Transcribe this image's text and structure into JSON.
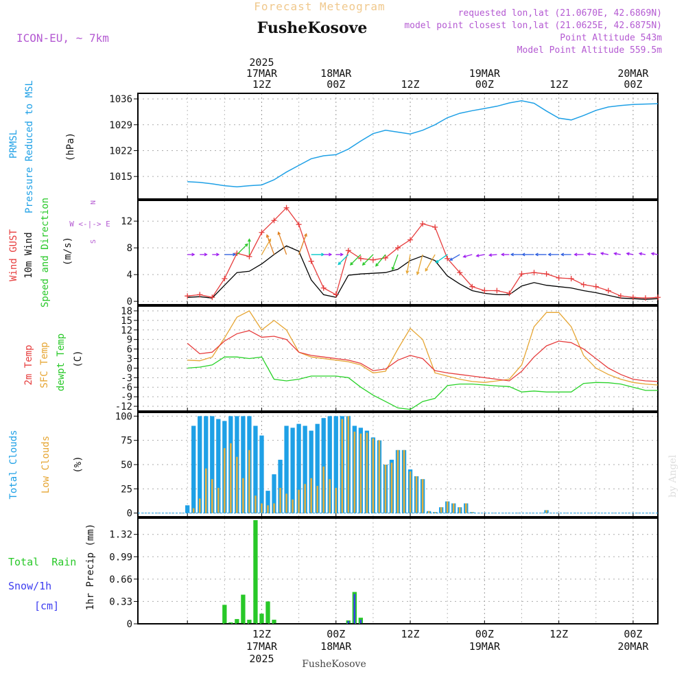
{
  "header": {
    "title": "Forecast Meteogram",
    "location": "FusheKosove",
    "model": "ICON-EU, ~ 7km",
    "requested": "requested lon,lat (21.0670E, 42.6869N)",
    "closest": "model point closest lon,lat (21.0625E, 42.6875N)",
    "point_altitude": "Point Altitude 543m",
    "model_altitude": "Model Point Altitude 559.5m",
    "credit": "by Angel",
    "footer_location": "FusheKosove"
  },
  "time_axis": {
    "top_labels": [
      {
        "hour": 12,
        "lines": [
          "2025",
          "17MAR",
          "12Z"
        ]
      },
      {
        "hour": 24,
        "lines": [
          "18MAR",
          "00Z"
        ]
      },
      {
        "hour": 36,
        "lines": [
          "12Z"
        ]
      },
      {
        "hour": 48,
        "lines": [
          "19MAR",
          "00Z"
        ]
      },
      {
        "hour": 60,
        "lines": [
          "12Z"
        ]
      },
      {
        "hour": 72,
        "lines": [
          "20MAR",
          "00Z"
        ]
      }
    ],
    "bottom_labels": [
      {
        "hour": 12,
        "lines": [
          "12Z",
          "17MAR",
          "2025"
        ]
      },
      {
        "hour": 24,
        "lines": [
          "00Z",
          "18MAR"
        ]
      },
      {
        "hour": 36,
        "lines": [
          "12Z"
        ]
      },
      {
        "hour": 48,
        "lines": [
          "00Z",
          "19MAR"
        ]
      },
      {
        "hour": 60,
        "lines": [
          "12Z"
        ]
      },
      {
        "hour": 72,
        "lines": [
          "00Z",
          "20MAR"
        ]
      }
    ]
  },
  "colors": {
    "pressure": "#1ea0e6",
    "gust": "#e63c3c",
    "wind": "#000000",
    "temp": "#e63c3c",
    "sfc": "#e6a532",
    "dew": "#28d228",
    "total_clouds": "#1ea0e6",
    "low_clouds": "#e6af3c",
    "rain": "#28c828",
    "snow": "#3c3cf0",
    "title": "#f0c88c",
    "meta": "#b45ad2"
  },
  "panel_labels": {
    "pressure": {
      "line1": "PRMSL",
      "line2": "Pressure Reduced to MSL",
      "unit": "(hPa)"
    },
    "wind": {
      "gust": "Wind GUST",
      "wind": "10m Wind",
      "dir": "Speed and Direction",
      "unit": "(m/s)",
      "compass_n": "N",
      "compass_s": "S",
      "compass_we": "W <-|-> E"
    },
    "temp": {
      "t2m": "2m Temp",
      "sfc": "SFC Temp",
      "dew": "dewpt Temp",
      "unit": "(C)"
    },
    "clouds": {
      "total": "Total Clouds",
      "low": "Low Clouds",
      "unit": "(%)"
    },
    "precip": {
      "rain": "Total  Rain",
      "snow": "Snow/1h",
      "snow_unit": "[cm]",
      "axis": "1hr Precip (mm)"
    }
  },
  "chart_data": [
    {
      "type": "line",
      "id": "pressure",
      "ylabel": "(hPa)",
      "yticks": [
        1015,
        1022,
        1029,
        1036
      ],
      "ylim": [
        1008.9,
        1037.5
      ],
      "grid": true,
      "x": [
        0,
        2,
        4,
        6,
        8,
        10,
        12,
        14,
        16,
        18,
        20,
        22,
        24,
        26,
        28,
        30,
        32,
        34,
        36,
        38,
        40,
        42,
        44,
        46,
        48,
        50,
        52,
        54,
        56,
        58,
        60,
        62,
        64,
        66,
        68,
        70,
        72,
        74,
        76
      ],
      "series": [
        {
          "name": "PRMSL",
          "values": [
            1013.6,
            1013.4,
            1013.0,
            1012.5,
            1012.2,
            1012.5,
            1012.7,
            1014.1,
            1016.2,
            1018.0,
            1019.8,
            1020.6,
            1020.9,
            1022.4,
            1024.6,
            1026.6,
            1027.5,
            1027.0,
            1026.5,
            1027.5,
            1029.0,
            1030.9,
            1032.1,
            1032.8,
            1033.4,
            1034.0,
            1034.9,
            1035.5,
            1034.8,
            1032.7,
            1030.8,
            1030.3,
            1031.5,
            1032.9,
            1033.8,
            1034.2,
            1034.5,
            1034.6,
            1034.7
          ]
        }
      ]
    },
    {
      "type": "line",
      "id": "wind",
      "ylabel": "(m/s)",
      "yticks": [
        0,
        4,
        8,
        12
      ],
      "ylim": [
        -0.5,
        15.1
      ],
      "grid": true,
      "x": [
        0,
        2,
        4,
        6,
        8,
        10,
        12,
        14,
        16,
        18,
        20,
        22,
        24,
        26,
        28,
        30,
        32,
        34,
        36,
        38,
        40,
        42,
        44,
        46,
        48,
        50,
        52,
        54,
        56,
        58,
        60,
        62,
        64,
        66,
        68,
        70,
        72,
        74,
        76
      ],
      "series": [
        {
          "name": "Wind GUST",
          "values": [
            0.8,
            1.0,
            0.6,
            3.4,
            7.2,
            6.7,
            10.3,
            12.1,
            14.0,
            11.5,
            6.0,
            2.0,
            1.0,
            7.6,
            6.4,
            6.2,
            6.5,
            8.0,
            9.2,
            11.6,
            11.1,
            6.4,
            4.3,
            2.2,
            1.6,
            1.6,
            1.2,
            4.1,
            4.3,
            4.1,
            3.5,
            3.4,
            2.5,
            2.2,
            1.6,
            0.8,
            0.6,
            0.5,
            0.6
          ]
        },
        {
          "name": "10m Wind",
          "values": [
            0.6,
            0.7,
            0.5,
            2.4,
            4.3,
            4.5,
            5.6,
            7.0,
            8.3,
            7.5,
            3.2,
            1.0,
            0.6,
            3.9,
            4.1,
            4.2,
            4.3,
            4.8,
            6.1,
            6.8,
            6.1,
            3.8,
            2.6,
            1.6,
            1.2,
            1.0,
            1.0,
            2.3,
            2.8,
            2.4,
            2.2,
            2.0,
            1.6,
            1.3,
            0.9,
            0.5,
            0.4,
            0.3,
            0.4
          ]
        }
      ],
      "arrows": {
        "x": [
          0,
          2,
          4,
          6,
          8,
          10,
          12,
          14,
          16,
          18,
          20,
          22,
          24,
          26,
          28,
          30,
          32,
          34,
          36,
          38,
          40,
          42,
          44,
          46,
          48,
          50,
          52,
          54,
          56,
          58,
          60,
          62,
          64,
          66,
          68,
          70,
          72,
          74,
          76
        ],
        "direction_deg": [
          270,
          270,
          270,
          270,
          225,
          180,
          210,
          160,
          160,
          200,
          270,
          270,
          270,
          45,
          45,
          45,
          40,
          20,
          10,
          15,
          30,
          55,
          60,
          75,
          80,
          85,
          90,
          90,
          90,
          90,
          90,
          90,
          90,
          95,
          100,
          100,
          100,
          100,
          100
        ],
        "y_level": 7.0
      }
    },
    {
      "type": "line",
      "id": "temperature",
      "ylabel": "(C)",
      "yticks": [
        -12,
        -9,
        -6,
        -3,
        0,
        3,
        6,
        9,
        12,
        15,
        18
      ],
      "ylim": [
        -13.5,
        19.5
      ],
      "grid": true,
      "x": [
        0,
        2,
        4,
        6,
        8,
        10,
        12,
        14,
        16,
        18,
        20,
        22,
        24,
        26,
        28,
        30,
        32,
        34,
        36,
        38,
        40,
        42,
        44,
        46,
        48,
        50,
        52,
        54,
        56,
        58,
        60,
        62,
        64,
        66,
        68,
        70,
        72,
        74,
        76
      ],
      "series": [
        {
          "name": "2m Temp",
          "values": [
            7.8,
            4.5,
            5.0,
            8.5,
            10.8,
            11.8,
            9.7,
            10.0,
            9.0,
            5.0,
            4.0,
            3.5,
            3.0,
            2.5,
            1.5,
            -0.8,
            -0.3,
            2.5,
            4.0,
            3.0,
            -0.8,
            -1.5,
            -2.0,
            -2.5,
            -3.0,
            -3.5,
            -4.0,
            -1.0,
            3.5,
            7.0,
            8.5,
            8.0,
            6.0,
            3.0,
            0.0,
            -2.0,
            -3.5,
            -4.0,
            -4.2
          ]
        },
        {
          "name": "SFC Temp",
          "values": [
            2.5,
            2.3,
            3.5,
            9.5,
            16.0,
            18.0,
            12.0,
            15.0,
            12.0,
            5.0,
            3.5,
            3.0,
            2.5,
            2.0,
            1.0,
            -1.5,
            -1.0,
            6.0,
            12.5,
            9.0,
            -1.5,
            -2.5,
            -3.5,
            -4.2,
            -4.5,
            -4.0,
            -3.5,
            1.0,
            13.0,
            17.5,
            17.5,
            13.0,
            4.0,
            0.0,
            -2.0,
            -3.5,
            -4.5,
            -5.0,
            -5.3
          ]
        },
        {
          "name": "dewpt Temp",
          "values": [
            0.0,
            0.3,
            1.0,
            3.5,
            3.5,
            3.0,
            3.5,
            -3.5,
            -4.0,
            -3.5,
            -2.5,
            -2.5,
            -2.5,
            -3.0,
            -6.0,
            -8.5,
            -10.5,
            -12.5,
            -13.0,
            -10.5,
            -9.5,
            -5.5,
            -5.0,
            -5.0,
            -5.3,
            -5.6,
            -5.8,
            -7.5,
            -7.2,
            -7.5,
            -7.5,
            -7.5,
            -4.8,
            -4.5,
            -4.6,
            -5.0,
            -6.0,
            -7.0,
            -7.0
          ]
        }
      ]
    },
    {
      "type": "bar",
      "id": "clouds",
      "ylabel": "(%)",
      "yticks": [
        0,
        25,
        50,
        75,
        100
      ],
      "ylim": [
        -3.8,
        103.8
      ],
      "grid": true,
      "x": [
        0,
        1,
        2,
        3,
        4,
        5,
        6,
        7,
        8,
        9,
        10,
        11,
        12,
        13,
        14,
        15,
        16,
        17,
        18,
        19,
        20,
        21,
        22,
        23,
        24,
        25,
        26,
        27,
        28,
        29,
        30,
        31,
        32,
        33,
        34,
        35,
        36,
        37,
        38,
        39,
        40,
        41,
        42,
        43,
        44,
        45,
        46,
        47,
        48,
        49,
        50,
        51,
        52,
        53,
        54,
        55,
        56,
        57,
        58,
        59,
        60,
        61,
        62,
        63,
        64,
        65,
        66,
        67,
        68,
        69,
        70,
        71,
        72,
        73,
        74,
        75,
        76
      ],
      "series": [
        {
          "name": "Total Clouds",
          "values": [
            8,
            90,
            100,
            100,
            100,
            97,
            95,
            100,
            100,
            100,
            100,
            90,
            80,
            23,
            40,
            55,
            90,
            88,
            92,
            90,
            85,
            92,
            98,
            100,
            100,
            100,
            100,
            90,
            88,
            85,
            78,
            75,
            50,
            55,
            65,
            65,
            45,
            38,
            35,
            2,
            1,
            6,
            12,
            10,
            6,
            10,
            1,
            0,
            0,
            0,
            0,
            0,
            0,
            0,
            0,
            0,
            0,
            0,
            3,
            0,
            0,
            0,
            0,
            0,
            0,
            0,
            0,
            0,
            0,
            0,
            0,
            0,
            0,
            0,
            0,
            0,
            0
          ]
        },
        {
          "name": "Low Clouds",
          "values": [
            0,
            5,
            15,
            46,
            35,
            26,
            67,
            72,
            58,
            36,
            65,
            18,
            10,
            8,
            10,
            26,
            20,
            14,
            24,
            30,
            36,
            28,
            48,
            35,
            26,
            97,
            100,
            84,
            82,
            83,
            77,
            75,
            50,
            52,
            65,
            65,
            43,
            38,
            35,
            2,
            1,
            6,
            12,
            10,
            6,
            10,
            1,
            0,
            0,
            0,
            0,
            0,
            0,
            0,
            0,
            0,
            0,
            0,
            3,
            0,
            0,
            0,
            0,
            0,
            0,
            0,
            0,
            0,
            0,
            0,
            0,
            0,
            0,
            0,
            0,
            0,
            0
          ]
        }
      ]
    },
    {
      "type": "bar",
      "id": "precip",
      "ylabel": "1hr Precip (mm)",
      "yticks": [
        0,
        0.33,
        0.66,
        0.99,
        1.32
      ],
      "ylim": [
        0,
        1.56
      ],
      "grid": true,
      "x": [
        0,
        1,
        2,
        3,
        4,
        5,
        6,
        7,
        8,
        9,
        10,
        11,
        12,
        13,
        14,
        15,
        16,
        17,
        18,
        19,
        20,
        21,
        22,
        23,
        24,
        25,
        26,
        27,
        28,
        29,
        30
      ],
      "series": [
        {
          "name": "Total Rain",
          "values": [
            0,
            0,
            0,
            0,
            0,
            0,
            0.28,
            0.02,
            0.07,
            0.43,
            0.06,
            1.53,
            0.15,
            0.33,
            0.06,
            0,
            0,
            0,
            0,
            0,
            0,
            0,
            0,
            0,
            0,
            0,
            0.05,
            0.47,
            0.09,
            0,
            0
          ]
        },
        {
          "name": "Snow/1h",
          "values": [
            0,
            0,
            0,
            0,
            0,
            0,
            0,
            0,
            0,
            0,
            0,
            0,
            0,
            0,
            0,
            0,
            0,
            0,
            0,
            0,
            0,
            0,
            0,
            0,
            0,
            0,
            0.04,
            0.44,
            0.06,
            0,
            0
          ]
        }
      ]
    }
  ]
}
